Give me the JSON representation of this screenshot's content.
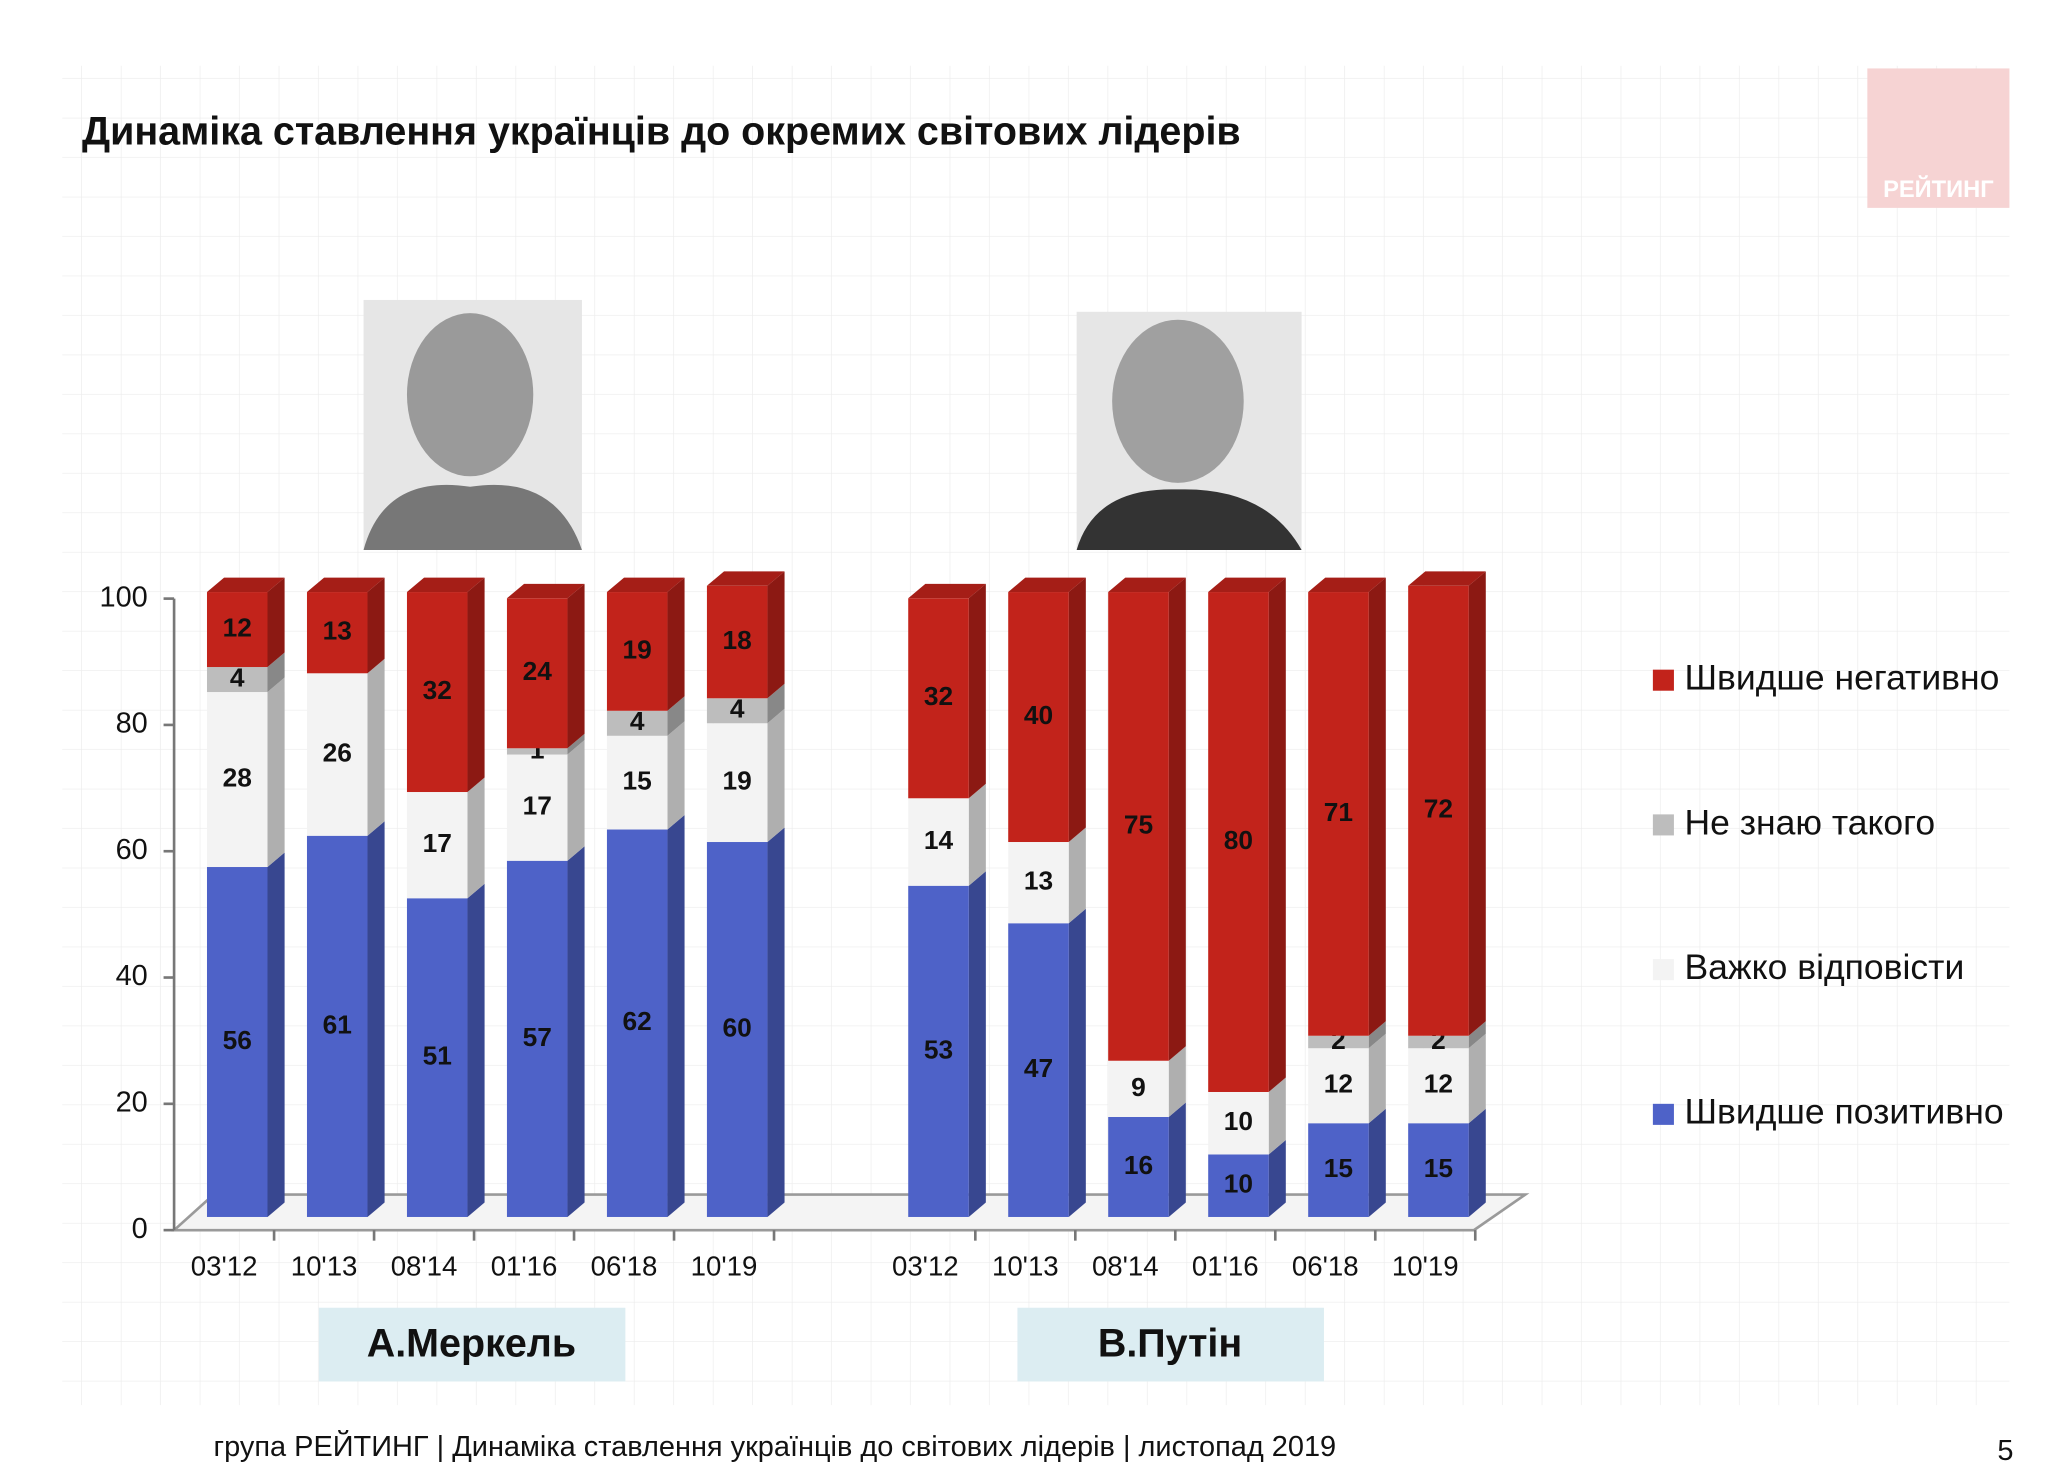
{
  "chart_data": {
    "type": "bar",
    "stacked": true,
    "title": "Динаміка ставлення українців до окремих світових лідерів",
    "ylim": [
      0,
      100
    ],
    "yticks": [
      0,
      20,
      40,
      60,
      80,
      100
    ],
    "legend": "right",
    "series": [
      {
        "name": "Швидше позитивно",
        "color": "#4e62c8"
      },
      {
        "name": "Важко відповісти",
        "color": "#f3f3f3"
      },
      {
        "name": "Не знаю такого",
        "color": "#bdbdbd"
      },
      {
        "name": "Швидше негативно",
        "color": "#c2231b"
      }
    ],
    "groups": [
      {
        "label": "А.Меркель",
        "categories": [
          "03'12",
          "10'13",
          "08'14",
          "01'16",
          "06'18",
          "10'19"
        ],
        "series": [
          {
            "values": [
              56,
              61,
              51,
              57,
              62,
              60
            ]
          },
          {
            "values": [
              28,
              26,
              17,
              17,
              15,
              19
            ]
          },
          {
            "values": [
              4,
              null,
              null,
              1,
              4,
              4
            ]
          },
          {
            "values": [
              12,
              13,
              32,
              24,
              19,
              18
            ]
          }
        ]
      },
      {
        "label": "В.Путін",
        "categories": [
          "03'12",
          "10'13",
          "08'14",
          "01'16",
          "06'18",
          "10'19"
        ],
        "series": [
          {
            "values": [
              53,
              47,
              16,
              10,
              15,
              15
            ]
          },
          {
            "values": [
              14,
              13,
              9,
              10,
              12,
              12
            ]
          },
          {
            "values": [
              null,
              null,
              null,
              null,
              2,
              2
            ]
          },
          {
            "values": [
              32,
              40,
              75,
              80,
              71,
              72
            ]
          }
        ]
      }
    ]
  },
  "logo": "РЕЙТИНГ",
  "footer": "група РЕЙТИНГ | Динаміка ставлення українців до світових лідерів  | листопад 2019",
  "page_number": "5"
}
